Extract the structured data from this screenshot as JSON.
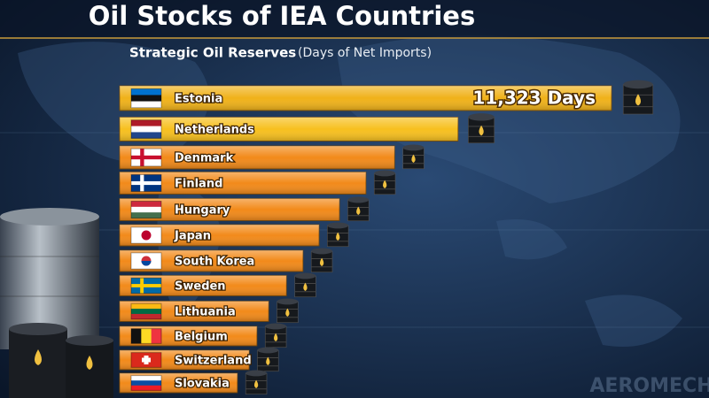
{
  "chart_data": {
    "type": "bar",
    "orientation": "horizontal",
    "title": "Oil Stocks of IEA Countries",
    "subtitle": "Strategic Oil Reserves",
    "subtitle_note": "(Days of Net Imports)",
    "categories": [
      "Estonia",
      "Netherlands",
      "Denmark",
      "Finland",
      "Hungary",
      "Japan",
      "South Korea",
      "Sweden",
      "Lithuania",
      "Belgium",
      "Switzerland",
      "Slovakia"
    ],
    "values": [
      11323,
      7790,
      6330,
      5670,
      5060,
      4590,
      4220,
      3840,
      3430,
      3160,
      2980,
      2710
    ],
    "value_labels": [
      "11,323 Days",
      null,
      null,
      null,
      null,
      null,
      null,
      null,
      null,
      null,
      null,
      null
    ],
    "colors": [
      "#f0b21a",
      "#f7c01f",
      "#f28a1a",
      "#f28a1a",
      "#f28a1a",
      "#f28a1a",
      "#f28a1a",
      "#f28a1a",
      "#f28a1a",
      "#f28a1a",
      "#f28a1a",
      "#f28a1a"
    ],
    "watermark": "AEROMECH"
  }
}
